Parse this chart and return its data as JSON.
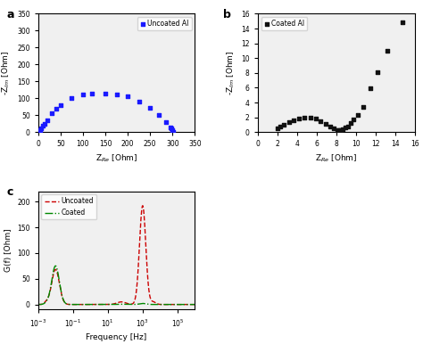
{
  "panel_a": {
    "label": "Uncoated Al",
    "color": "#1a1aff",
    "marker": "s",
    "x": [
      1,
      2,
      4,
      7,
      10,
      15,
      20,
      30,
      40,
      50,
      75,
      100,
      120,
      150,
      175,
      200,
      225,
      250,
      270,
      285,
      295,
      298,
      300,
      301
    ],
    "y": [
      0.5,
      2,
      5,
      12,
      18,
      25,
      35,
      55,
      68,
      80,
      100,
      110,
      113,
      113,
      112,
      107,
      90,
      72,
      50,
      30,
      15,
      10,
      5,
      0
    ]
  },
  "panel_b": {
    "label": "Coated Al",
    "color": "#111111",
    "marker": "s",
    "x": [
      2.0,
      2.3,
      2.7,
      3.2,
      3.7,
      4.2,
      4.8,
      5.4,
      5.9,
      6.4,
      6.9,
      7.4,
      7.8,
      8.1,
      8.3,
      8.5,
      8.7,
      8.9,
      9.2,
      9.5,
      9.8,
      10.2,
      10.8,
      11.5,
      12.2,
      13.2,
      14.8
    ],
    "y": [
      0.5,
      0.8,
      1.0,
      1.3,
      1.6,
      1.8,
      2.0,
      2.0,
      1.8,
      1.5,
      1.1,
      0.7,
      0.45,
      0.3,
      0.25,
      0.3,
      0.4,
      0.6,
      0.8,
      1.2,
      1.7,
      2.3,
      3.4,
      5.9,
      8.1,
      11.0,
      14.8
    ]
  },
  "panel_c": {
    "xlabel": "Frequency [Hz]",
    "ylabel": "G(f) [Ohm]",
    "uncoated_color": "#cc0000",
    "coated_color": "#008800",
    "ylim": [
      -10,
      220
    ],
    "xlim_log": [
      -3,
      6
    ]
  },
  "panel_a_xlabel": "Z$_{Re}$ [Ohm]",
  "panel_a_ylabel": "-Z$_{Im}$ [Ohm]",
  "panel_a_xlim": [
    0,
    350
  ],
  "panel_a_ylim": [
    0,
    350
  ],
  "panel_a_xticks": [
    0,
    50,
    100,
    150,
    200,
    250,
    300,
    350
  ],
  "panel_a_yticks": [
    0,
    50,
    100,
    150,
    200,
    250,
    300,
    350
  ],
  "panel_b_xlabel": "Z$_{Re}$ [Ohm]",
  "panel_b_ylabel": "-Z$_{Im}$ [Ohm]",
  "panel_b_xlim": [
    0,
    16
  ],
  "panel_b_ylim": [
    0,
    16
  ],
  "panel_b_xticks": [
    0,
    2,
    4,
    6,
    8,
    10,
    12,
    14,
    16
  ],
  "panel_b_yticks": [
    0,
    2,
    4,
    6,
    8,
    10,
    12,
    14,
    16
  ],
  "panel_c_yticks": [
    0,
    50,
    100,
    150,
    200
  ],
  "bg_color": "#f0f0f0"
}
